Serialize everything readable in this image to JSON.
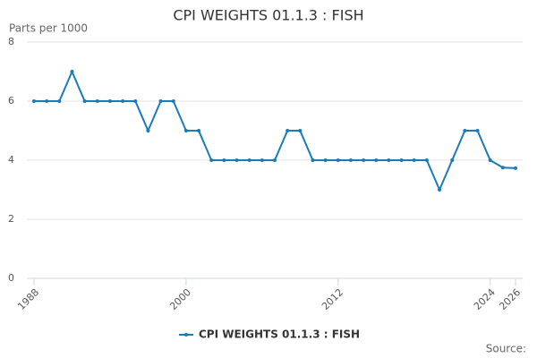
{
  "chart_data": {
    "type": "line",
    "title": "CPI WEIGHTS 01.1.3 : FISH",
    "y_label": "Parts per 1000",
    "source": "Source:",
    "x": [
      1988,
      1989,
      1990,
      1991,
      1992,
      1993,
      1994,
      1995,
      1996,
      1997,
      1998,
      1999,
      2000,
      2001,
      2002,
      2003,
      2004,
      2005,
      2006,
      2007,
      2008,
      2009,
      2010,
      2011,
      2012,
      2013,
      2014,
      2015,
      2016,
      2017,
      2018,
      2019,
      2020,
      2021,
      2022,
      2023,
      2024,
      2025,
      2026
    ],
    "series": [
      {
        "name": "CPI WEIGHTS 01.1.3 : FISH",
        "color": "#1a7bb5",
        "values": [
          6,
          6,
          6,
          7,
          6,
          6,
          6,
          6,
          6,
          5,
          6,
          6,
          5,
          5,
          4,
          4,
          4,
          4,
          4,
          4,
          5,
          5,
          4,
          4,
          4,
          4,
          4,
          4,
          4,
          4,
          4,
          4,
          3,
          4,
          5,
          5,
          4,
          3.75,
          3.73
        ]
      }
    ],
    "xlim": [
      1988,
      2026
    ],
    "xticks": [
      1988,
      2000,
      2012,
      2024,
      2026
    ],
    "ylim": [
      0,
      8
    ],
    "yticks": [
      0,
      2,
      4,
      6,
      8
    ],
    "grid": true,
    "legend": "bottom"
  }
}
